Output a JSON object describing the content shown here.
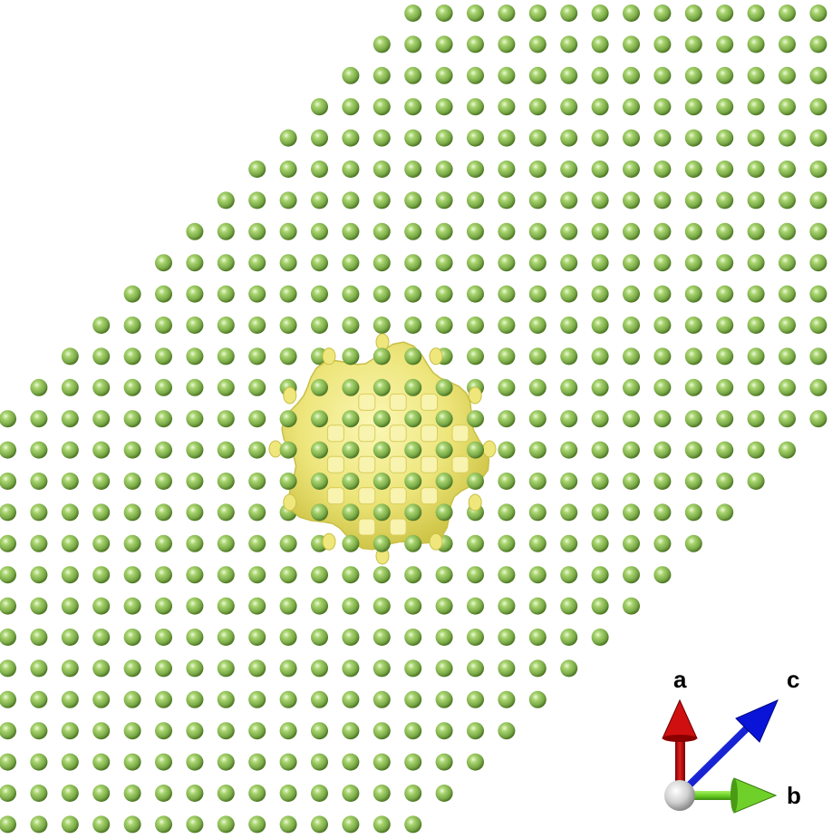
{
  "colors": {
    "background": "#ffffff",
    "atom": "#8fbf5a",
    "atom_highlight": "#e4f5c8",
    "atom_shadow": "#4f7a25",
    "isosurface": "#f1ec7a",
    "isosurface_shadow": "#c9c148",
    "axis_a": "#c00000",
    "axis_b": "#66cc22",
    "axis_c": "#0010e0",
    "axis_origin": "#cfcfcf"
  },
  "axes": {
    "a_label": "a",
    "b_label": "b",
    "c_label": "c"
  }
}
